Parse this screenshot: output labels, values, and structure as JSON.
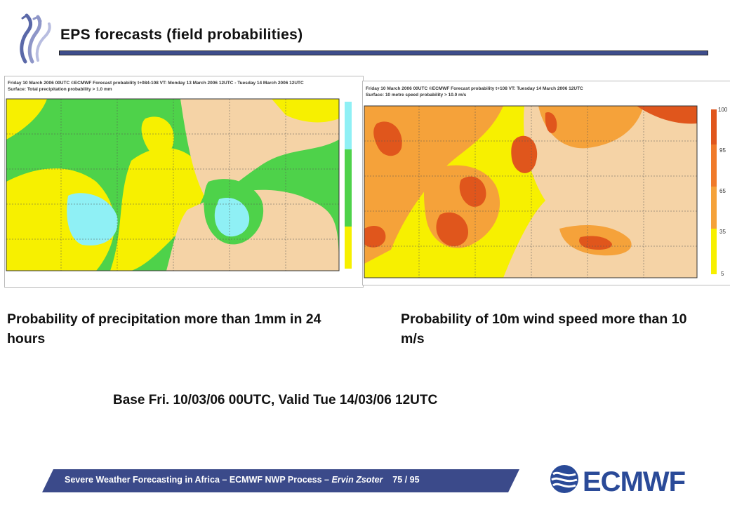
{
  "slide": {
    "title": "EPS forecasts (field probabilities)",
    "left_map": {
      "header_line1": "Friday 10 March 2006 00UTC ©ECMWF Forecast probability t+084-108 VT: Monday 13 March 2006 12UTC - Tuesday 14 March 2006 12UTC",
      "header_line2": "Surface: Total precipitation probability > 1.0 mm"
    },
    "right_map": {
      "header_line1": "Friday 10 March 2006 00UTC ©ECMWF Forecast probability t+108 VT: Tuesday 14 March 2006 12UTC",
      "header_line2": "Surface: 10 metre speed probability > 10.0 m/s",
      "legend": [
        "100",
        "95",
        "65",
        "35",
        "5"
      ]
    },
    "caption_left": "Probability of precipitation more than 1mm in 24 hours",
    "caption_right": "Probability of 10m wind speed more than 10 m/s",
    "base_valid": "Base Fri. 10/03/06 00UTC, Valid Tue 14/03/06 12UTC",
    "footer": {
      "text_main": "Severe Weather Forecasting in Africa – ECMWF NWP Process – ",
      "author": "Ervin Zsoter",
      "page": "75 / 95"
    },
    "logo_text": "ECMWF",
    "colors": {
      "title_bar": "#3e4d8c",
      "footer_bar": "#3b4a8a",
      "logo_blue": "#2a4a98",
      "land": "#f5d3a6",
      "precip_green": "#4ed24a",
      "precip_yellow": "#f7f000",
      "precip_cyan": "#8ff0f5",
      "wind_orange": "#f5a23a",
      "wind_red": "#e0561c"
    }
  }
}
